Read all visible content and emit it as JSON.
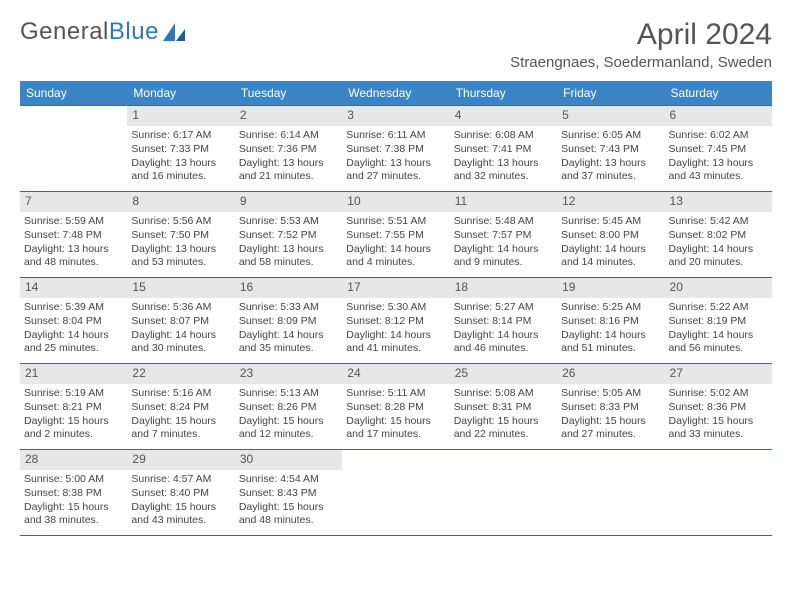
{
  "logo": {
    "text_gray": "General",
    "text_blue": "Blue"
  },
  "title": "April 2024",
  "location": "Straengnaes, Soedermanland, Sweden",
  "colors": {
    "header_bg": "#3b85c6",
    "border": "#2b6aa8",
    "daynum_bg": "#e7e7e7",
    "text": "#444444",
    "logo_blue": "#2f78bd"
  },
  "weekdays": [
    "Sunday",
    "Monday",
    "Tuesday",
    "Wednesday",
    "Thursday",
    "Friday",
    "Saturday"
  ],
  "weeks": [
    [
      null,
      {
        "n": "1",
        "sr": "6:17 AM",
        "ss": "7:33 PM",
        "dl": "13 hours and 16 minutes."
      },
      {
        "n": "2",
        "sr": "6:14 AM",
        "ss": "7:36 PM",
        "dl": "13 hours and 21 minutes."
      },
      {
        "n": "3",
        "sr": "6:11 AM",
        "ss": "7:38 PM",
        "dl": "13 hours and 27 minutes."
      },
      {
        "n": "4",
        "sr": "6:08 AM",
        "ss": "7:41 PM",
        "dl": "13 hours and 32 minutes."
      },
      {
        "n": "5",
        "sr": "6:05 AM",
        "ss": "7:43 PM",
        "dl": "13 hours and 37 minutes."
      },
      {
        "n": "6",
        "sr": "6:02 AM",
        "ss": "7:45 PM",
        "dl": "13 hours and 43 minutes."
      }
    ],
    [
      {
        "n": "7",
        "sr": "5:59 AM",
        "ss": "7:48 PM",
        "dl": "13 hours and 48 minutes."
      },
      {
        "n": "8",
        "sr": "5:56 AM",
        "ss": "7:50 PM",
        "dl": "13 hours and 53 minutes."
      },
      {
        "n": "9",
        "sr": "5:53 AM",
        "ss": "7:52 PM",
        "dl": "13 hours and 58 minutes."
      },
      {
        "n": "10",
        "sr": "5:51 AM",
        "ss": "7:55 PM",
        "dl": "14 hours and 4 minutes."
      },
      {
        "n": "11",
        "sr": "5:48 AM",
        "ss": "7:57 PM",
        "dl": "14 hours and 9 minutes."
      },
      {
        "n": "12",
        "sr": "5:45 AM",
        "ss": "8:00 PM",
        "dl": "14 hours and 14 minutes."
      },
      {
        "n": "13",
        "sr": "5:42 AM",
        "ss": "8:02 PM",
        "dl": "14 hours and 20 minutes."
      }
    ],
    [
      {
        "n": "14",
        "sr": "5:39 AM",
        "ss": "8:04 PM",
        "dl": "14 hours and 25 minutes."
      },
      {
        "n": "15",
        "sr": "5:36 AM",
        "ss": "8:07 PM",
        "dl": "14 hours and 30 minutes."
      },
      {
        "n": "16",
        "sr": "5:33 AM",
        "ss": "8:09 PM",
        "dl": "14 hours and 35 minutes."
      },
      {
        "n": "17",
        "sr": "5:30 AM",
        "ss": "8:12 PM",
        "dl": "14 hours and 41 minutes."
      },
      {
        "n": "18",
        "sr": "5:27 AM",
        "ss": "8:14 PM",
        "dl": "14 hours and 46 minutes."
      },
      {
        "n": "19",
        "sr": "5:25 AM",
        "ss": "8:16 PM",
        "dl": "14 hours and 51 minutes."
      },
      {
        "n": "20",
        "sr": "5:22 AM",
        "ss": "8:19 PM",
        "dl": "14 hours and 56 minutes."
      }
    ],
    [
      {
        "n": "21",
        "sr": "5:19 AM",
        "ss": "8:21 PM",
        "dl": "15 hours and 2 minutes."
      },
      {
        "n": "22",
        "sr": "5:16 AM",
        "ss": "8:24 PM",
        "dl": "15 hours and 7 minutes."
      },
      {
        "n": "23",
        "sr": "5:13 AM",
        "ss": "8:26 PM",
        "dl": "15 hours and 12 minutes."
      },
      {
        "n": "24",
        "sr": "5:11 AM",
        "ss": "8:28 PM",
        "dl": "15 hours and 17 minutes."
      },
      {
        "n": "25",
        "sr": "5:08 AM",
        "ss": "8:31 PM",
        "dl": "15 hours and 22 minutes."
      },
      {
        "n": "26",
        "sr": "5:05 AM",
        "ss": "8:33 PM",
        "dl": "15 hours and 27 minutes."
      },
      {
        "n": "27",
        "sr": "5:02 AM",
        "ss": "8:36 PM",
        "dl": "15 hours and 33 minutes."
      }
    ],
    [
      {
        "n": "28",
        "sr": "5:00 AM",
        "ss": "8:38 PM",
        "dl": "15 hours and 38 minutes."
      },
      {
        "n": "29",
        "sr": "4:57 AM",
        "ss": "8:40 PM",
        "dl": "15 hours and 43 minutes."
      },
      {
        "n": "30",
        "sr": "4:54 AM",
        "ss": "8:43 PM",
        "dl": "15 hours and 48 minutes."
      },
      null,
      null,
      null,
      null
    ]
  ],
  "labels": {
    "sunrise": "Sunrise:",
    "sunset": "Sunset:",
    "daylight": "Daylight:"
  }
}
